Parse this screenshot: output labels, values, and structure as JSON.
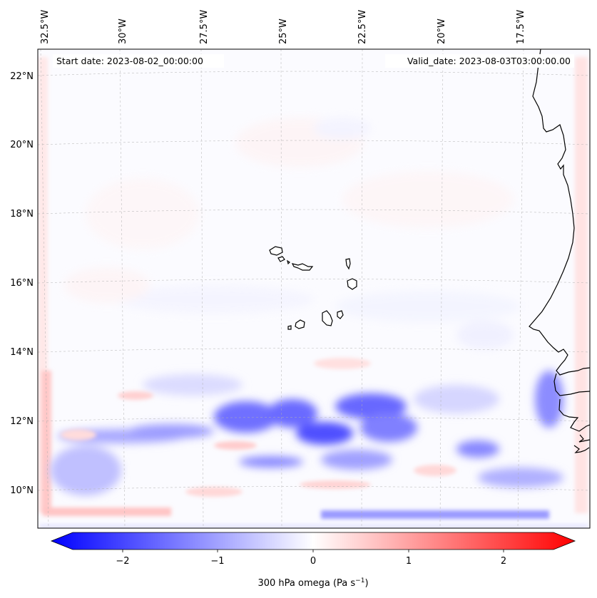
{
  "header": {
    "start_label": "Start date: 2023-08-02_00:00:00",
    "valid_label": "Valid_date: 2023-08-03T03:00:00.00"
  },
  "map": {
    "lon_labels": [
      "32.5°W",
      "30°W",
      "27.5°W",
      "25°W",
      "22.5°W",
      "20°W",
      "17.5°W"
    ],
    "lat_labels": [
      "22°N",
      "20°N",
      "18°N",
      "16°N",
      "14°N",
      "12°N",
      "10°N"
    ],
    "coastline_color": "#000000",
    "gridline_color": "#b0b0b0"
  },
  "colorbar": {
    "ticks": [
      "−2",
      "−1",
      "0",
      "1",
      "2"
    ],
    "label": "300 hPa omega (Pa s",
    "label_sup": "−1",
    "label_close": ")",
    "colors": {
      "negative": "#0000ff",
      "zero": "#ffffff",
      "positive": "#ff0000"
    },
    "range": [
      -2.7,
      2.7
    ]
  }
}
